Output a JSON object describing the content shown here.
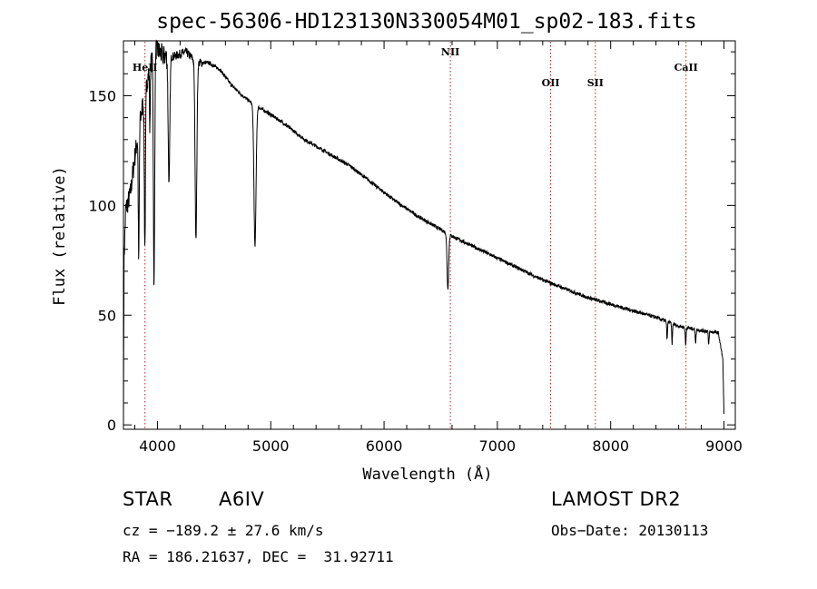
{
  "chart_data": {
    "type": "line",
    "title": "spec-56306-HD123130N330054M01_sp02-183.fits",
    "xlabel": "Wavelength (Å)",
    "ylabel": "Flux (relative)",
    "xlim": [
      3700,
      9100
    ],
    "ylim": [
      -2,
      175
    ],
    "xticks": [
      4000,
      5000,
      6000,
      7000,
      8000,
      9000
    ],
    "yticks": [
      0,
      50,
      100,
      150
    ],
    "line_color": "#000000",
    "marker_color": "#b22222",
    "lines": [
      {
        "label": "HeII",
        "wavelength": 3890
      },
      {
        "label": "NII",
        "wavelength": 6585
      },
      {
        "label": "OII",
        "wavelength": 7470
      },
      {
        "label": "SII",
        "wavelength": 7865
      },
      {
        "label": "CaII",
        "wavelength": 8665
      }
    ],
    "continuum": [
      [
        3700,
        0
      ],
      [
        3705,
        75
      ],
      [
        3720,
        98
      ],
      [
        3760,
        105
      ],
      [
        3800,
        122
      ],
      [
        3850,
        140
      ],
      [
        3920,
        160
      ],
      [
        3980,
        172
      ],
      [
        4050,
        168
      ],
      [
        4150,
        168
      ],
      [
        4250,
        170
      ],
      [
        4350,
        165
      ],
      [
        4450,
        165
      ],
      [
        4550,
        162
      ],
      [
        4650,
        155
      ],
      [
        4750,
        150
      ],
      [
        4850,
        146
      ],
      [
        4950,
        143
      ],
      [
        5100,
        138
      ],
      [
        5300,
        130
      ],
      [
        5500,
        124
      ],
      [
        5700,
        118
      ],
      [
        5900,
        110
      ],
      [
        6100,
        102
      ],
      [
        6300,
        95
      ],
      [
        6500,
        89
      ],
      [
        6600,
        86
      ],
      [
        6800,
        81
      ],
      [
        7000,
        76
      ],
      [
        7200,
        71
      ],
      [
        7400,
        66
      ],
      [
        7600,
        62
      ],
      [
        7800,
        58
      ],
      [
        8000,
        55
      ],
      [
        8200,
        52
      ],
      [
        8400,
        49
      ],
      [
        8600,
        45
      ],
      [
        8800,
        43
      ],
      [
        8950,
        42
      ],
      [
        8990,
        30
      ],
      [
        9000,
        5
      ]
    ],
    "absorption": [
      {
        "wavelength": 3835,
        "depth": 60,
        "width": 6
      },
      {
        "wavelength": 3889,
        "depth": 70,
        "width": 7
      },
      {
        "wavelength": 3933,
        "depth": 30,
        "width": 4
      },
      {
        "wavelength": 3970,
        "depth": 108,
        "width": 8
      },
      {
        "wavelength": 4102,
        "depth": 58,
        "width": 10
      },
      {
        "wavelength": 4340,
        "depth": 80,
        "width": 11
      },
      {
        "wavelength": 4861,
        "depth": 64,
        "width": 13
      },
      {
        "wavelength": 6563,
        "depth": 25,
        "width": 10
      },
      {
        "wavelength": 8498,
        "depth": 8,
        "width": 5
      },
      {
        "wavelength": 8542,
        "depth": 9,
        "width": 5
      },
      {
        "wavelength": 8662,
        "depth": 8,
        "width": 5
      },
      {
        "wavelength": 8750,
        "depth": 6,
        "width": 5
      },
      {
        "wavelength": 8865,
        "depth": 6,
        "width": 5
      }
    ]
  },
  "info": {
    "object_type": "STAR",
    "subclass": "A6IV",
    "survey": "LAMOST DR2",
    "cz": "cz = −189.2 ± 27.6 km/s",
    "obs_date": "Obs−Date: 20130113",
    "coords": "RA = 186.21637, DEC =  31.92711"
  }
}
